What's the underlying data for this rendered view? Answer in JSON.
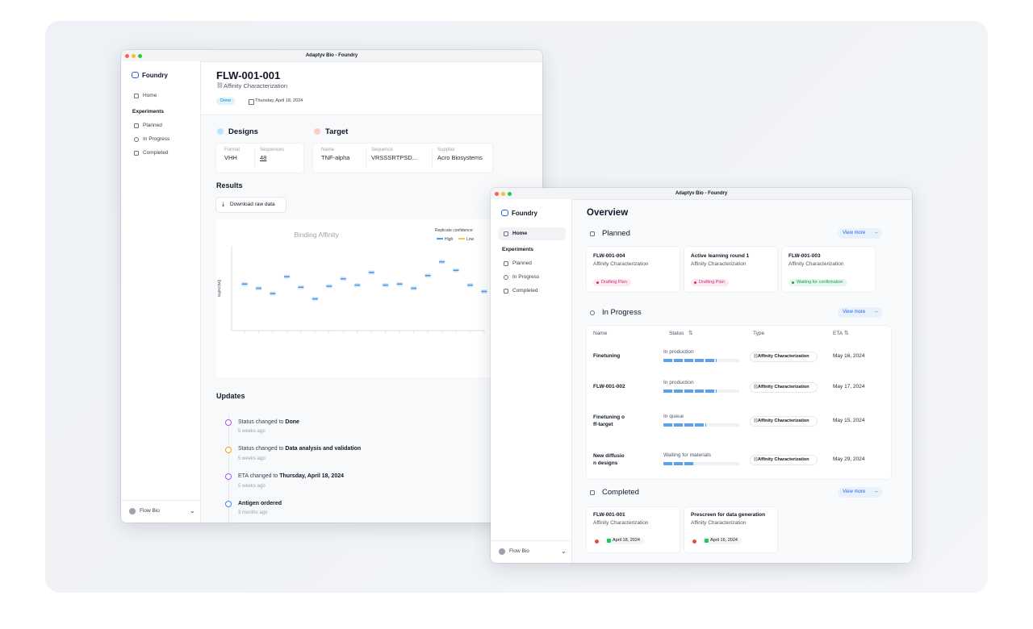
{
  "left_window": {
    "title": "Adaptyv Bio - Foundry",
    "sidebar": {
      "brand": "Foundry",
      "home": "Home",
      "section": "Experiments",
      "items": [
        "Planned",
        "In Progress",
        "Completed"
      ],
      "org": "Flow Bio"
    },
    "header": {
      "id": "FLW-001-001",
      "subtitle": "Affinity Characterization",
      "status": "Done",
      "date": "Thursday, April 18, 2024"
    },
    "designs": {
      "title": "Designs",
      "fields": [
        {
          "label": "Format",
          "value": "VHH"
        },
        {
          "label": "Sequences",
          "value": "48"
        }
      ]
    },
    "target": {
      "title": "Target",
      "fields": [
        {
          "label": "Name",
          "value": "TNF-alpha"
        },
        {
          "label": "Sequence",
          "value": "VRSSSRTPSD..."
        },
        {
          "label": "Supplier",
          "value": "Acro Biosystems"
        }
      ]
    },
    "results": {
      "title": "Results",
      "button": "Download raw data"
    },
    "updates": {
      "title": "Updates",
      "items": [
        {
          "text": "Status changed to",
          "highlight": "Done",
          "time": "5 weeks ago",
          "color": "#a855f7"
        },
        {
          "text": "Status changed to",
          "highlight": "Data analysis and validation",
          "time": "5 weeks ago",
          "color": "#f59e0b"
        },
        {
          "text": "ETA changed to",
          "highlight": "Thursday, April 18, 2024",
          "time": "5 weeks ago",
          "color": "#a855f7"
        },
        {
          "highlight": "Antigen ordered",
          "time": "3 months ago",
          "color": "#3b82f6"
        }
      ]
    }
  },
  "chart_data": {
    "type": "scatter",
    "title": "Binding Affinity",
    "y_label": "log(KD[M])",
    "legend_title": "Replicate confidence:",
    "categories": [
      null,
      null,
      null,
      null,
      null,
      null,
      null,
      null,
      null,
      null,
      null,
      null,
      null,
      null,
      null,
      null,
      null,
      null
    ],
    "series": [
      {
        "name": "High",
        "color": "#4a9be8",
        "values": [
          2.2,
          2.0,
          1.75,
          2.55,
          2.05,
          1.5,
          2.1,
          2.45,
          2.15,
          2.75,
          2.15,
          2.2,
          2.0,
          2.6,
          3.25,
          2.85,
          2.15,
          1.85
        ]
      },
      {
        "name": "Low",
        "color": "#f2c94c",
        "values": [
          null,
          null,
          null,
          null,
          null,
          null,
          null,
          null,
          null,
          null,
          null,
          null,
          null,
          null,
          null,
          null,
          null,
          null
        ]
      }
    ],
    "ylim": [
      0,
      4
    ]
  },
  "right_window": {
    "title": "Adaptyv Bio - Foundry",
    "sidebar": {
      "brand": "Foundry",
      "home": "Home",
      "section": "Experiments",
      "items": [
        "Planned",
        "In Progress",
        "Completed"
      ],
      "org": "Flow Bio"
    },
    "heading": "Overview",
    "planned": {
      "title": "Planned",
      "link": "View more",
      "cards": [
        {
          "id": "FLW-001-004",
          "type": "Affinity Characterization",
          "status": "Drafting Plan",
          "status_color": "#db2777"
        },
        {
          "id": "Active learning round 1",
          "type": "Affinity Characterization",
          "status": "Drafting Plan",
          "status_color": "#db2777"
        },
        {
          "id": "FLW-001-003",
          "type": "Affinity Characterization",
          "status": "Waiting for confirmation",
          "status_color": "#16a34a"
        }
      ]
    },
    "in_progress": {
      "title": "In Progress",
      "link": "View more",
      "columns": [
        "Name",
        "Status",
        "Type",
        "ETA"
      ],
      "rows": [
        {
          "name": "Finetuning",
          "status": "In production",
          "progress": 70,
          "type": "Affinity Characterization",
          "eta": "May 16, 2024"
        },
        {
          "name": "FLW-001-002",
          "status": "In production",
          "progress": 70,
          "type": "Affinity Characterization",
          "eta": "May 17, 2024"
        },
        {
          "name": "Finetuning off-target",
          "status": "In queue",
          "progress": 56,
          "type": "Affinity Characterization",
          "eta": "May 15, 2024"
        },
        {
          "name": "New diffusion designs",
          "status": "Waiting for materials",
          "progress": 41,
          "type": "Affinity Characterization",
          "eta": "May 29, 2024"
        }
      ]
    },
    "completed": {
      "title": "Completed",
      "link": "View more",
      "cards": [
        {
          "id": "FLW-001-001",
          "type": "Affinity Characterization",
          "date": "April 18, 2024"
        },
        {
          "id": "Prescreen for data generation",
          "type": "Affinity Characterization",
          "date": "April 16, 2024"
        }
      ]
    }
  }
}
